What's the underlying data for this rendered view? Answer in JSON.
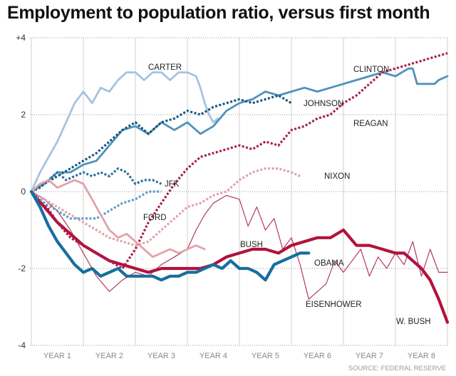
{
  "chart_data": {
    "type": "line",
    "title": "Employment to population ratio, versus first month",
    "xlabel": "",
    "ylabel": "",
    "ylim": [
      -4,
      4
    ],
    "y_ticks": [
      "+4",
      "2",
      "0",
      "-2",
      "-4"
    ],
    "x_ticks": [
      "YEAR 1",
      "YEAR 2",
      "YEAR 3",
      "YEAR 4",
      "YEAR 5",
      "YEAR 6",
      "YEAR 7",
      "YEAR 8"
    ],
    "xlim": [
      0,
      96
    ],
    "grid": true,
    "source": "SOURCE: FEDERAL RESERVE",
    "series": [
      {
        "name": "EISENHOWER",
        "color": "#b23a62",
        "style": "thin",
        "points": [
          [
            0,
            0
          ],
          [
            3,
            -0.2
          ],
          [
            6,
            -0.5
          ],
          [
            9,
            -1.0
          ],
          [
            12,
            -1.6
          ],
          [
            15,
            -2.2
          ],
          [
            18,
            -2.6
          ],
          [
            21,
            -2.3
          ],
          [
            24,
            -2.1
          ],
          [
            27,
            -2.2
          ],
          [
            30,
            -1.9
          ],
          [
            33,
            -1.7
          ],
          [
            36,
            -1.5
          ],
          [
            38,
            -1.0
          ],
          [
            40,
            -0.6
          ],
          [
            42,
            -0.3
          ],
          [
            45,
            -0.1
          ],
          [
            48,
            -0.2
          ],
          [
            50,
            -0.9
          ],
          [
            52,
            -0.4
          ],
          [
            54,
            -1.0
          ],
          [
            56,
            -0.7
          ],
          [
            58,
            -1.5
          ],
          [
            60,
            -1.2
          ],
          [
            62,
            -1.9
          ],
          [
            64,
            -2.8
          ],
          [
            66,
            -2.6
          ],
          [
            68,
            -2.4
          ],
          [
            70,
            -1.8
          ],
          [
            72,
            -2.1
          ],
          [
            74,
            -1.8
          ],
          [
            76,
            -1.5
          ],
          [
            78,
            -2.2
          ],
          [
            80,
            -1.7
          ],
          [
            82,
            -2.0
          ],
          [
            84,
            -1.6
          ],
          [
            86,
            -1.9
          ],
          [
            88,
            -1.3
          ],
          [
            90,
            -2.2
          ],
          [
            92,
            -1.5
          ],
          [
            94,
            -2.1
          ],
          [
            96,
            -2.1
          ]
        ]
      },
      {
        "name": "W. BUSH",
        "color": "#b3123d",
        "style": "thick",
        "points": [
          [
            0,
            0
          ],
          [
            3,
            -0.4
          ],
          [
            6,
            -0.8
          ],
          [
            9,
            -1.1
          ],
          [
            12,
            -1.4
          ],
          [
            15,
            -1.6
          ],
          [
            18,
            -1.8
          ],
          [
            21,
            -1.9
          ],
          [
            24,
            -2.0
          ],
          [
            27,
            -2.1
          ],
          [
            30,
            -2.0
          ],
          [
            33,
            -2.0
          ],
          [
            36,
            -2.0
          ],
          [
            39,
            -2.0
          ],
          [
            42,
            -1.9
          ],
          [
            45,
            -1.7
          ],
          [
            48,
            -1.6
          ],
          [
            51,
            -1.5
          ],
          [
            54,
            -1.5
          ],
          [
            57,
            -1.6
          ],
          [
            60,
            -1.4
          ],
          [
            63,
            -1.3
          ],
          [
            66,
            -1.2
          ],
          [
            69,
            -1.2
          ],
          [
            72,
            -1.0
          ],
          [
            75,
            -1.4
          ],
          [
            78,
            -1.4
          ],
          [
            81,
            -1.5
          ],
          [
            84,
            -1.6
          ],
          [
            86,
            -1.6
          ],
          [
            88,
            -1.8
          ],
          [
            90,
            -2.0
          ],
          [
            92,
            -2.3
          ],
          [
            94,
            -2.8
          ],
          [
            96,
            -3.4
          ]
        ]
      },
      {
        "name": "CARTER",
        "color": "#a6c3df",
        "style": "solid",
        "points": [
          [
            0,
            0
          ],
          [
            2,
            0.5
          ],
          [
            4,
            0.9
          ],
          [
            6,
            1.3
          ],
          [
            8,
            1.8
          ],
          [
            10,
            2.3
          ],
          [
            12,
            2.6
          ],
          [
            14,
            2.3
          ],
          [
            16,
            2.7
          ],
          [
            18,
            2.6
          ],
          [
            20,
            2.9
          ],
          [
            22,
            3.1
          ],
          [
            24,
            3.1
          ],
          [
            26,
            2.9
          ],
          [
            28,
            3.1
          ],
          [
            30,
            3.1
          ],
          [
            32,
            2.9
          ],
          [
            34,
            3.1
          ],
          [
            36,
            3.1
          ],
          [
            38,
            3.0
          ],
          [
            39,
            2.7
          ],
          [
            40,
            2.3
          ],
          [
            41,
            2.0
          ],
          [
            42,
            1.8
          ],
          [
            43,
            1.9
          ]
        ]
      },
      {
        "name": "CLINTON",
        "color": "#4e92ba",
        "style": "solid",
        "points": [
          [
            0,
            0
          ],
          [
            3,
            0.2
          ],
          [
            6,
            0.5
          ],
          [
            9,
            0.5
          ],
          [
            12,
            0.7
          ],
          [
            15,
            0.8
          ],
          [
            18,
            1.2
          ],
          [
            21,
            1.6
          ],
          [
            24,
            1.7
          ],
          [
            27,
            1.5
          ],
          [
            30,
            1.8
          ],
          [
            33,
            1.6
          ],
          [
            36,
            1.8
          ],
          [
            39,
            1.5
          ],
          [
            42,
            1.7
          ],
          [
            45,
            2.1
          ],
          [
            48,
            2.3
          ],
          [
            51,
            2.4
          ],
          [
            54,
            2.6
          ],
          [
            57,
            2.5
          ],
          [
            60,
            2.6
          ],
          [
            63,
            2.7
          ],
          [
            66,
            2.6
          ],
          [
            69,
            2.7
          ],
          [
            72,
            2.8
          ],
          [
            75,
            2.9
          ],
          [
            78,
            3.0
          ],
          [
            81,
            3.1
          ],
          [
            84,
            3.0
          ],
          [
            87,
            3.2
          ],
          [
            88,
            3.2
          ],
          [
            89,
            2.8
          ],
          [
            91,
            2.8
          ],
          [
            93,
            2.8
          ],
          [
            94,
            2.9
          ],
          [
            96,
            3.0
          ]
        ]
      },
      {
        "name": "REAGAN",
        "color": "#a6204b",
        "style": "dotted",
        "points": [
          [
            0,
            0
          ],
          [
            3,
            -0.3
          ],
          [
            6,
            -0.8
          ],
          [
            9,
            -1.2
          ],
          [
            12,
            -1.4
          ],
          [
            15,
            -1.6
          ],
          [
            18,
            -1.8
          ],
          [
            21,
            -2.0
          ],
          [
            24,
            -1.5
          ],
          [
            27,
            -0.8
          ],
          [
            30,
            -0.3
          ],
          [
            33,
            0.2
          ],
          [
            36,
            0.6
          ],
          [
            39,
            0.9
          ],
          [
            42,
            1.0
          ],
          [
            45,
            1.1
          ],
          [
            48,
            1.2
          ],
          [
            51,
            1.1
          ],
          [
            54,
            1.3
          ],
          [
            57,
            1.2
          ],
          [
            60,
            1.6
          ],
          [
            63,
            1.7
          ],
          [
            66,
            1.9
          ],
          [
            69,
            2.0
          ],
          [
            72,
            2.3
          ],
          [
            75,
            2.5
          ],
          [
            78,
            2.8
          ],
          [
            81,
            3.1
          ],
          [
            84,
            3.2
          ],
          [
            87,
            3.3
          ],
          [
            90,
            3.4
          ],
          [
            93,
            3.5
          ],
          [
            96,
            3.6
          ]
        ]
      },
      {
        "name": "JOHNSON",
        "color": "#15577e",
        "style": "dotted",
        "points": [
          [
            0,
            0
          ],
          [
            3,
            0.2
          ],
          [
            6,
            0.4
          ],
          [
            9,
            0.6
          ],
          [
            12,
            0.8
          ],
          [
            15,
            1.0
          ],
          [
            18,
            1.3
          ],
          [
            21,
            1.6
          ],
          [
            24,
            1.8
          ],
          [
            27,
            1.5
          ],
          [
            30,
            1.8
          ],
          [
            33,
            1.9
          ],
          [
            36,
            2.1
          ],
          [
            39,
            2.0
          ],
          [
            42,
            2.2
          ],
          [
            45,
            2.3
          ],
          [
            48,
            2.4
          ],
          [
            51,
            2.3
          ],
          [
            54,
            2.4
          ],
          [
            57,
            2.5
          ],
          [
            60,
            2.3
          ]
        ]
      },
      {
        "name": "JFK",
        "color": "#2a6f9a",
        "style": "dotted",
        "points": [
          [
            0,
            0
          ],
          [
            2,
            0.1
          ],
          [
            4,
            0.3
          ],
          [
            6,
            0.5
          ],
          [
            8,
            0.3
          ],
          [
            10,
            0.4
          ],
          [
            12,
            0.5
          ],
          [
            14,
            0.4
          ],
          [
            16,
            0.5
          ],
          [
            18,
            0.4
          ],
          [
            20,
            0.6
          ],
          [
            22,
            0.5
          ],
          [
            24,
            0.2
          ],
          [
            26,
            0.3
          ],
          [
            28,
            0.3
          ],
          [
            30,
            0.2
          ]
        ]
      },
      {
        "name": "NIXON",
        "color": "#e0a2ab",
        "style": "dotted",
        "points": [
          [
            0,
            0
          ],
          [
            3,
            -0.2
          ],
          [
            6,
            -0.4
          ],
          [
            9,
            -0.6
          ],
          [
            12,
            -0.8
          ],
          [
            15,
            -1.0
          ],
          [
            18,
            -1.2
          ],
          [
            21,
            -1.3
          ],
          [
            24,
            -1.4
          ],
          [
            27,
            -1.3
          ],
          [
            30,
            -1.0
          ],
          [
            33,
            -0.7
          ],
          [
            36,
            -0.4
          ],
          [
            39,
            -0.3
          ],
          [
            42,
            -0.1
          ],
          [
            45,
            0.0
          ],
          [
            48,
            0.3
          ],
          [
            51,
            0.5
          ],
          [
            54,
            0.6
          ],
          [
            57,
            0.6
          ],
          [
            60,
            0.5
          ],
          [
            62,
            0.4
          ]
        ]
      },
      {
        "name": "FORD",
        "color": "#5f9cc4",
        "style": "dotted",
        "points": [
          [
            0,
            0
          ],
          [
            3,
            -0.3
          ],
          [
            6,
            -0.5
          ],
          [
            9,
            -0.7
          ],
          [
            12,
            -0.7
          ],
          [
            15,
            -0.7
          ],
          [
            18,
            -0.5
          ],
          [
            21,
            -0.3
          ],
          [
            24,
            -0.2
          ],
          [
            27,
            0.0
          ],
          [
            30,
            0.0
          ]
        ]
      },
      {
        "name": "BUSH",
        "color": "#e3a1aa",
        "style": "solid",
        "points": [
          [
            0,
            0
          ],
          [
            2,
            0.2
          ],
          [
            4,
            0.3
          ],
          [
            6,
            0.1
          ],
          [
            8,
            0.2
          ],
          [
            10,
            0.3
          ],
          [
            12,
            0.2
          ],
          [
            14,
            -0.2
          ],
          [
            16,
            -0.6
          ],
          [
            18,
            -1.0
          ],
          [
            20,
            -1.2
          ],
          [
            22,
            -1.1
          ],
          [
            24,
            -1.3
          ],
          [
            26,
            -1.5
          ],
          [
            28,
            -1.7
          ],
          [
            30,
            -1.6
          ],
          [
            32,
            -1.5
          ],
          [
            34,
            -1.6
          ],
          [
            36,
            -1.5
          ],
          [
            38,
            -1.4
          ],
          [
            40,
            -1.5
          ]
        ]
      },
      {
        "name": "OBAMA",
        "color": "#176e9e",
        "style": "thick",
        "points": [
          [
            0,
            0
          ],
          [
            2,
            -0.4
          ],
          [
            4,
            -0.9
          ],
          [
            6,
            -1.3
          ],
          [
            8,
            -1.6
          ],
          [
            10,
            -1.9
          ],
          [
            12,
            -2.1
          ],
          [
            14,
            -2.0
          ],
          [
            16,
            -2.2
          ],
          [
            18,
            -2.1
          ],
          [
            20,
            -2.0
          ],
          [
            22,
            -2.2
          ],
          [
            24,
            -2.2
          ],
          [
            26,
            -2.2
          ],
          [
            28,
            -2.2
          ],
          [
            30,
            -2.3
          ],
          [
            32,
            -2.2
          ],
          [
            34,
            -2.2
          ],
          [
            36,
            -2.1
          ],
          [
            38,
            -2.1
          ],
          [
            40,
            -2.0
          ],
          [
            42,
            -1.9
          ],
          [
            44,
            -2.0
          ],
          [
            46,
            -1.8
          ],
          [
            48,
            -2.0
          ],
          [
            50,
            -2.0
          ],
          [
            52,
            -2.1
          ],
          [
            54,
            -2.3
          ],
          [
            56,
            -1.9
          ],
          [
            58,
            -1.8
          ],
          [
            60,
            -1.7
          ],
          [
            62,
            -1.6
          ],
          [
            64,
            -1.6
          ]
        ]
      }
    ]
  }
}
